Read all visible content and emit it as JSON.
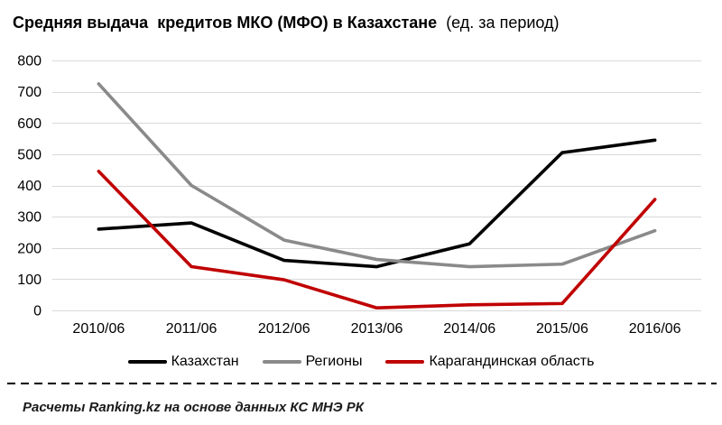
{
  "title": {
    "main": "Средняя выдача  кредитов МКО (МФО) в Казахстане",
    "sub": "  (ед. за период)"
  },
  "footer": {
    "text": "Расчеты Ranking.kz на основе данных КС МНЭ РК"
  },
  "colors": {
    "kazakhstan": "#000000",
    "regions": "#8a8a8a",
    "karaganda": "#c00000",
    "gridline": "#d9d9d9",
    "divider": "#000000",
    "text": "#000000"
  },
  "chart_data": {
    "type": "line",
    "title": "Средняя выдача кредитов МКО (МФО) в Казахстане (ед. за период)",
    "categories": [
      "2010/06",
      "2011/06",
      "2012/06",
      "2013/06",
      "2014/06",
      "2015/06",
      "2016/06"
    ],
    "series": [
      {
        "key": "kazakhstan",
        "name": "Казахстан",
        "color": "#000000",
        "values": [
          260,
          280,
          160,
          140,
          213,
          505,
          545
        ]
      },
      {
        "key": "regions",
        "name": "Регионы",
        "color": "#8a8a8a",
        "values": [
          725,
          400,
          225,
          163,
          140,
          148,
          255
        ]
      },
      {
        "key": "karaganda-region",
        "name": "Карагандинская область",
        "color": "#c00000",
        "values": [
          445,
          140,
          98,
          8,
          18,
          22,
          355
        ]
      }
    ],
    "ylim": [
      0,
      800
    ],
    "ytick_step": 100,
    "xlabel": "",
    "ylabel": "",
    "grid": true,
    "legend_position": "bottom"
  }
}
